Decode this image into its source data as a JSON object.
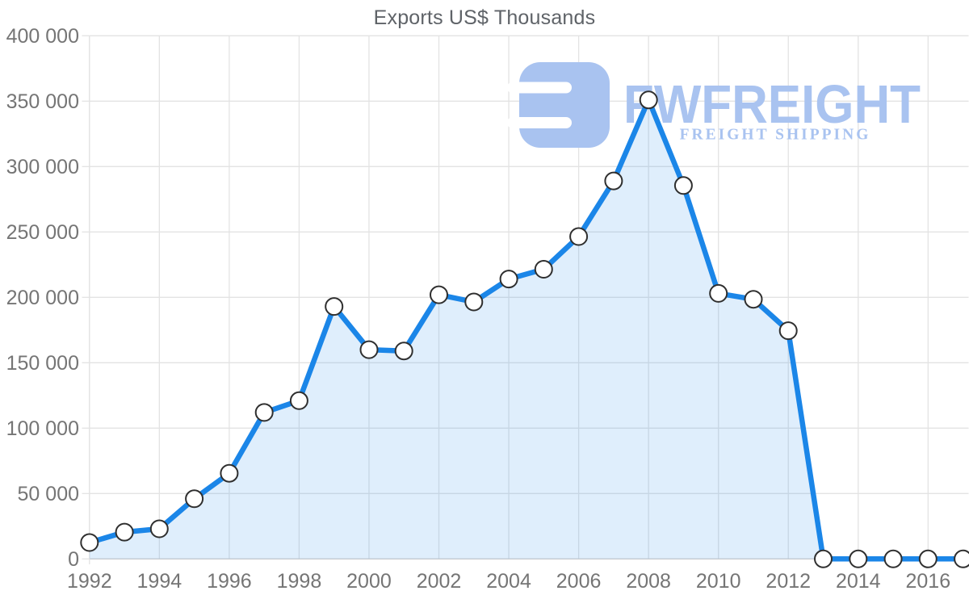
{
  "title": "Exports US$ Thousands",
  "watermark": {
    "brand": "FWFREIGHT",
    "tagline": "FREIGHT SHIPPING",
    "color": "#a9c3f0"
  },
  "chart_data": {
    "type": "area",
    "title": "Exports US$ Thousands",
    "x": [
      1992,
      1993,
      1994,
      1995,
      1996,
      1997,
      1998,
      1999,
      2000,
      2001,
      2002,
      2003,
      2004,
      2005,
      2006,
      2007,
      2008,
      2009,
      2010,
      2011,
      2012,
      2013,
      2014,
      2015,
      2016,
      2017
    ],
    "series": [
      {
        "name": "Exports US$ Thousands",
        "values": [
          12500,
          20500,
          23000,
          46000,
          65500,
          112000,
          121000,
          193000,
          160000,
          159000,
          202000,
          196500,
          214000,
          221500,
          246500,
          289000,
          351000,
          285500,
          203000,
          198500,
          174500,
          0,
          0,
          0,
          0,
          0
        ]
      }
    ],
    "ylim": [
      0,
      400000
    ],
    "ytick_step": 50000,
    "xticks": [
      1992,
      1994,
      1996,
      1998,
      2000,
      2002,
      2004,
      2006,
      2008,
      2010,
      2012,
      2014,
      2016
    ],
    "grid": true,
    "legend": "none",
    "colors": {
      "line": "#1b86e8",
      "fill": "rgba(27,134,232,0.14)",
      "marker_fill": "#ffffff",
      "marker_stroke": "#2f2f2f",
      "grid": "#e3e3e3",
      "axis": "#cfcfcf",
      "tick_label": "#757575",
      "title": "#5f6368"
    }
  }
}
